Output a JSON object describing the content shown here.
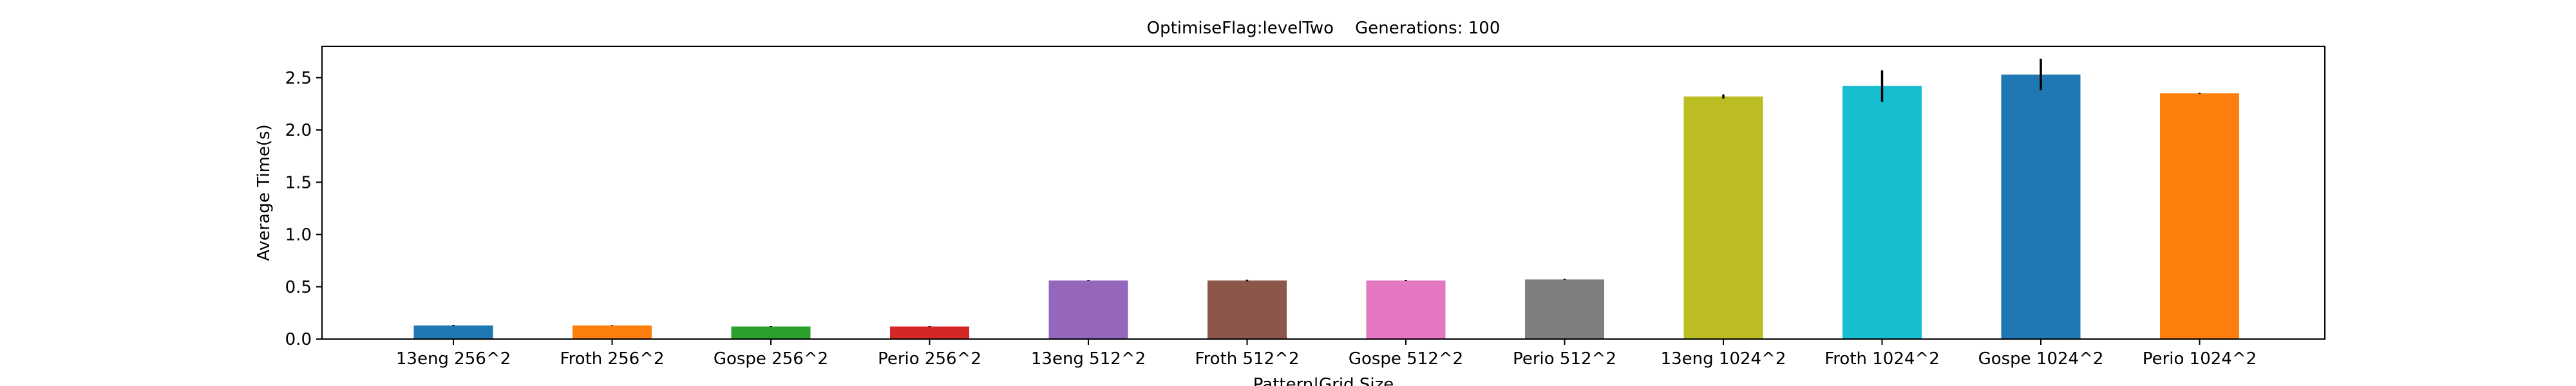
{
  "chart_data": {
    "type": "bar",
    "title": "OptimiseFlag:levelTwo    Generations: 100",
    "xlabel": "Pattern|Grid Size",
    "ylabel": "Average Time(s)",
    "ylim": [
      0,
      2.8
    ],
    "yticks": [
      0.0,
      0.5,
      1.0,
      1.5,
      2.0,
      2.5
    ],
    "ytick_labels": [
      "0.0",
      "0.5",
      "1.0",
      "1.5",
      "2.0",
      "2.5"
    ],
    "grid": false,
    "categories": [
      "13eng 256^2",
      "Froth 256^2",
      "Gospe 256^2",
      "Perio 256^2",
      "13eng 512^2",
      "Froth 512^2",
      "Gospe 512^2",
      "Perio 512^2",
      "13eng 1024^2",
      "Froth 1024^2",
      "Gospe 1024^2",
      "Perio 1024^2"
    ],
    "values": [
      0.13,
      0.13,
      0.12,
      0.12,
      0.56,
      0.56,
      0.56,
      0.57,
      2.32,
      2.42,
      2.53,
      2.35
    ],
    "errors": [
      0.005,
      0.003,
      0.003,
      0.003,
      0.005,
      0.008,
      0.006,
      0.005,
      0.02,
      0.15,
      0.15,
      0.005
    ],
    "colors": [
      "#1f77b4",
      "#ff7f0e",
      "#2ca02c",
      "#d62728",
      "#9467bd",
      "#8c564b",
      "#e377c2",
      "#7f7f7f",
      "#bcbd22",
      "#17becf",
      "#1f77b4",
      "#ff7f0e"
    ]
  }
}
